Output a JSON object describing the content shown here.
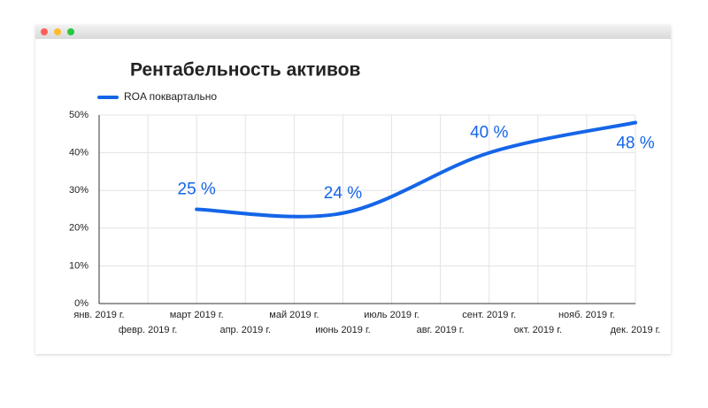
{
  "chart_data": {
    "type": "line",
    "title": "Рентабельность активов",
    "xticks": [
      {
        "value": "2019-01",
        "label": "янв. 2019 г."
      },
      {
        "value": "2019-02",
        "label": "февр. 2019 г."
      },
      {
        "value": "2019-03",
        "label": "март 2019 г."
      },
      {
        "value": "2019-04",
        "label": "апр. 2019 г."
      },
      {
        "value": "2019-05",
        "label": "май 2019 г."
      },
      {
        "value": "2019-06",
        "label": "июнь 2019 г."
      },
      {
        "value": "2019-07",
        "label": "июль 2019 г."
      },
      {
        "value": "2019-08",
        "label": "авг. 2019 г."
      },
      {
        "value": "2019-09",
        "label": "сент. 2019 г."
      },
      {
        "value": "2019-10",
        "label": "окт. 2019 г."
      },
      {
        "value": "2019-11",
        "label": "нояб. 2019 г."
      },
      {
        "value": "2019-12",
        "label": "дек. 2019 г."
      }
    ],
    "xlim": [
      "2019-01",
      "2019-12"
    ],
    "series": [
      {
        "name": "ROA поквартально",
        "color": "#1565e8",
        "x": [
          "2019-03",
          "2019-06",
          "2019-09",
          "2019-12"
        ],
        "values": [
          25,
          24,
          40,
          48
        ],
        "value_labels": [
          "25 %",
          "24 %",
          "40 %",
          "48 %"
        ]
      }
    ],
    "ylim": [
      0,
      50
    ],
    "yticks": [
      {
        "value": 0,
        "label": "0%"
      },
      {
        "value": 10,
        "label": "10%"
      },
      {
        "value": 20,
        "label": "20%"
      },
      {
        "value": 30,
        "label": "30%"
      },
      {
        "value": 40,
        "label": "40%"
      },
      {
        "value": 50,
        "label": "50%"
      }
    ],
    "grid": true,
    "legend": "top-left"
  }
}
